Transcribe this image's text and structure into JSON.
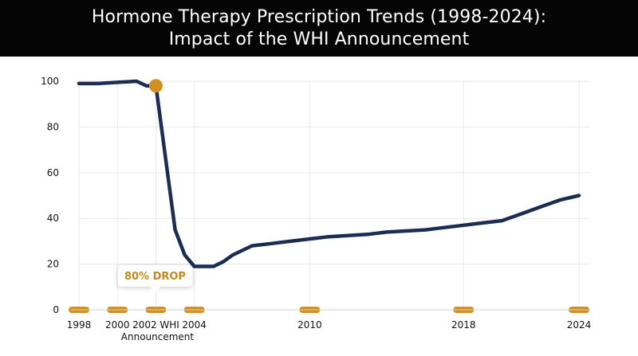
{
  "title": {
    "line1": "Hormone Therapy Prescription Trends (1998-2024):",
    "line2": "Impact of the WHI Announcement"
  },
  "colors": {
    "line": "#1b2d52",
    "marker": "#d4901f",
    "callout_text": "#c08a1e",
    "grid": "#e9e9e9",
    "axis": "#d0d0d0"
  },
  "chart_data": {
    "type": "line",
    "title": "Hormone Therapy Prescription Trends (1998-2024): Impact of the WHI Announcement",
    "xlabel": "",
    "ylabel": "",
    "xlim": [
      1998,
      2024
    ],
    "ylim": [
      0,
      100
    ],
    "yticks": [
      0,
      20,
      40,
      60,
      80,
      100
    ],
    "xticks": [
      {
        "value": 1998,
        "label": "1998"
      },
      {
        "value": 2000,
        "label": "2000"
      },
      {
        "value": 2002,
        "label": "2002 WHI",
        "label2": "Announcement"
      },
      {
        "value": 2004,
        "label": "2004"
      },
      {
        "value": 2010,
        "label": "2010"
      },
      {
        "value": 2018,
        "label": "2018"
      },
      {
        "value": 2024,
        "label": "2024"
      }
    ],
    "grid": true,
    "series": [
      {
        "x": [
          1998,
          1999,
          2000,
          2001,
          2001.5,
          2002,
          2003,
          2003.5,
          2004,
          2005,
          2005.5,
          2006,
          2007,
          2008,
          2009,
          2010,
          2011,
          2012,
          2013,
          2014,
          2015,
          2016,
          2017,
          2018,
          2019,
          2020,
          2021,
          2022,
          2023,
          2024
        ],
        "y": [
          99,
          99,
          99.5,
          100,
          98,
          98,
          35,
          24,
          19,
          19,
          21,
          24,
          28,
          29,
          30,
          31,
          32,
          32.5,
          33,
          34,
          34.5,
          35,
          36,
          37,
          38,
          39,
          42,
          45,
          48,
          50
        ]
      }
    ],
    "annotations": [
      {
        "text": "80% DROP",
        "x": 2002,
        "y": 98
      }
    ]
  }
}
